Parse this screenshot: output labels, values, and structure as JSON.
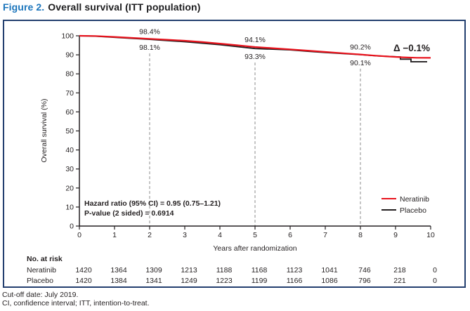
{
  "title": {
    "label": "Figure 2.",
    "text": "Overall survival (ITT population)"
  },
  "chart_data": {
    "type": "line",
    "subtype": "kaplan-meier",
    "xlabel": "Years after randomization",
    "ylabel": "Overall survival (%)",
    "xlim": [
      0,
      10
    ],
    "ylim": [
      0,
      100
    ],
    "xticks": [
      0,
      1,
      2,
      3,
      4,
      5,
      6,
      7,
      8,
      9,
      10
    ],
    "yticks": [
      0,
      10,
      20,
      30,
      40,
      50,
      60,
      70,
      80,
      90,
      100
    ],
    "grid": false,
    "legend_position": "bottom-right",
    "series": [
      {
        "name": "Neratinib",
        "color": "#e8131d",
        "points": [
          [
            0,
            100
          ],
          [
            0.45,
            99.9
          ],
          [
            1,
            99.4
          ],
          [
            1.5,
            98.9
          ],
          [
            2,
            98.4
          ],
          [
            2.5,
            97.95
          ],
          [
            3,
            97.4
          ],
          [
            3.5,
            96.7
          ],
          [
            4,
            95.9
          ],
          [
            4.5,
            95.0
          ],
          [
            5,
            94.1
          ],
          [
            5.5,
            93.5
          ],
          [
            6,
            92.85
          ],
          [
            6.5,
            92.2
          ],
          [
            7,
            91.5
          ],
          [
            7.5,
            90.85
          ],
          [
            8,
            90.2
          ],
          [
            8.4,
            89.6
          ],
          [
            8.8,
            89.1
          ],
          [
            9.2,
            88.7
          ],
          [
            9.6,
            88.45
          ],
          [
            10,
            88.4
          ]
        ]
      },
      {
        "name": "Placebo",
        "color": "#231f20",
        "points": [
          [
            0,
            100
          ],
          [
            0.45,
            99.8
          ],
          [
            1,
            99.2
          ],
          [
            1.5,
            98.65
          ],
          [
            2,
            98.1
          ],
          [
            2.5,
            97.5
          ],
          [
            3,
            96.9
          ],
          [
            3.5,
            96.1
          ],
          [
            4,
            95.3
          ],
          [
            4.5,
            94.3
          ],
          [
            5,
            93.3
          ],
          [
            5.5,
            92.95
          ],
          [
            6,
            92.6
          ],
          [
            6.5,
            91.9
          ],
          [
            7,
            91.2
          ],
          [
            7.5,
            90.65
          ],
          [
            8,
            90.1
          ],
          [
            8.5,
            89.4
          ],
          [
            9.14,
            88.9
          ],
          [
            9.14,
            87.7
          ],
          [
            9.44,
            87.7
          ],
          [
            9.44,
            86.4
          ],
          [
            9.9,
            86.4
          ]
        ]
      }
    ],
    "annotations": {
      "landmarks": [
        {
          "year": 2,
          "top": "98.4%",
          "top_pct": 98.4,
          "bottom": "98.1%",
          "bottom_pct": 98.1
        },
        {
          "year": 5,
          "top": "94.1%",
          "top_pct": 94.1,
          "bottom": "93.3%",
          "bottom_pct": 93.3
        },
        {
          "year": 8,
          "top": "90.2%",
          "top_pct": 90.2,
          "bottom": "90.1%",
          "bottom_pct": 90.1
        }
      ],
      "delta": "Δ −0.1%",
      "stats_line1": "Hazard ratio (95% CI) = 0.95 (0.75–1.21)",
      "stats_line2": "P-value (2 sided) = 0.6914"
    },
    "risk_table": {
      "header": "No. at risk",
      "years": [
        0,
        1,
        2,
        3,
        4,
        5,
        6,
        7,
        8,
        9,
        10
      ],
      "rows": [
        {
          "label": "Neratinib",
          "values": [
            "1420",
            "1364",
            "1309",
            "1213",
            "1188",
            "1168",
            "1123",
            "1041",
            "746",
            "218",
            "0"
          ]
        },
        {
          "label": "Placebo",
          "values": [
            "1420",
            "1384",
            "1341",
            "1249",
            "1223",
            "1199",
            "1166",
            "1086",
            "796",
            "221",
            "0"
          ]
        }
      ]
    }
  },
  "footer": {
    "line1": "Cut-off date: July 2019.",
    "line2": "CI, confidence interval; ITT, intention-to-treat."
  },
  "colors": {
    "title_accent": "#1b75bc",
    "box_border": "#233f6f",
    "neratinib": "#e8131d",
    "placebo": "#231f20",
    "dashed_line": "#9d9d9d"
  }
}
